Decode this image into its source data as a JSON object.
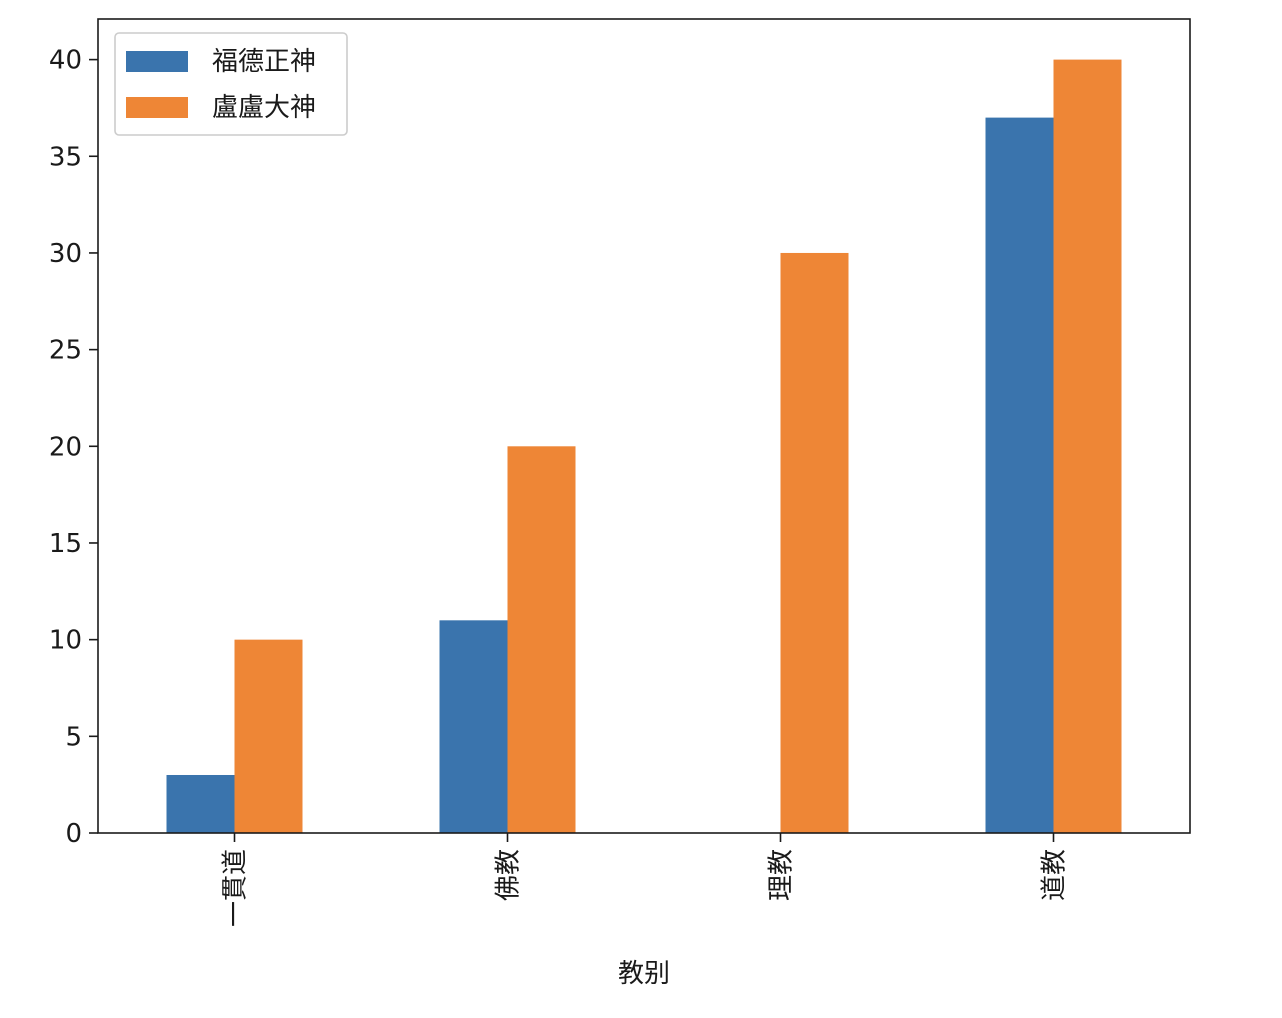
{
  "chart_data": {
    "type": "bar",
    "title": "",
    "xlabel": "教别",
    "ylabel": "",
    "categories": [
      "一貫道",
      "佛教",
      "理教",
      "道教"
    ],
    "series": [
      {
        "name": "福德正神",
        "values": [
          3,
          11,
          0,
          37
        ],
        "color": "#3a74ad"
      },
      {
        "name": "盧盧大神",
        "values": [
          10,
          20,
          30,
          40
        ],
        "color": "#ee8636"
      }
    ],
    "ylim": [
      0,
      42.1
    ],
    "yticks": [
      0,
      5,
      10,
      15,
      20,
      25,
      30,
      35,
      40
    ],
    "grid": false,
    "legend_position": "top-left",
    "xtick_rotation": 90
  }
}
